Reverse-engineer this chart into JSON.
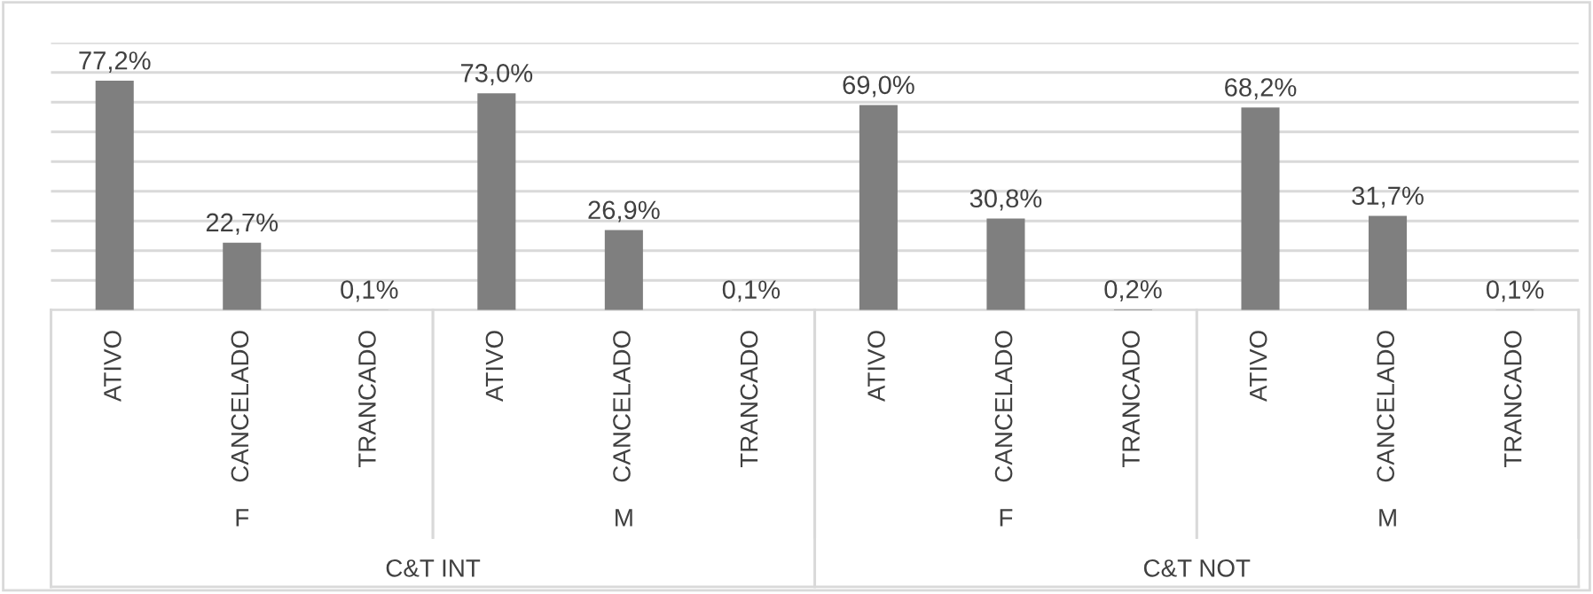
{
  "chart_data": {
    "type": "bar",
    "categories": [
      "ATIVO",
      "CANCELADO",
      "TRANCADO",
      "ATIVO",
      "CANCELADO",
      "TRANCADO",
      "ATIVO",
      "CANCELADO",
      "TRANCADO",
      "ATIVO",
      "CANCELADO",
      "TRANCADO"
    ],
    "values": [
      77.2,
      22.7,
      0.1,
      73.0,
      26.9,
      0.1,
      69.0,
      30.8,
      0.2,
      68.2,
      31.7,
      0.1
    ],
    "value_labels": [
      "77,2%",
      "22,7%",
      "0,1%",
      "73,0%",
      "26,9%",
      "0,1%",
      "69,0%",
      "30,8%",
      "0,2%",
      "68,2%",
      "31,7%",
      "0,1%"
    ],
    "color": "#7f7f7f",
    "ylim": [
      0,
      90
    ],
    "yticks": [
      {
        "value": 0,
        "label": null
      },
      {
        "value": 10,
        "label": null
      },
      {
        "value": 20,
        "label": null
      },
      {
        "value": 30,
        "label": null
      },
      {
        "value": 40,
        "label": null
      },
      {
        "value": 50,
        "label": null
      },
      {
        "value": 60,
        "label": null
      },
      {
        "value": 70,
        "label": null
      },
      {
        "value": 80,
        "label": null
      },
      {
        "value": 90,
        "label": null
      }
    ],
    "tick_labels": "x",
    "grid": "y",
    "annotations": [
      "F",
      "M",
      "F",
      "M",
      "C&T INT",
      "C&T NOT"
    ]
  }
}
